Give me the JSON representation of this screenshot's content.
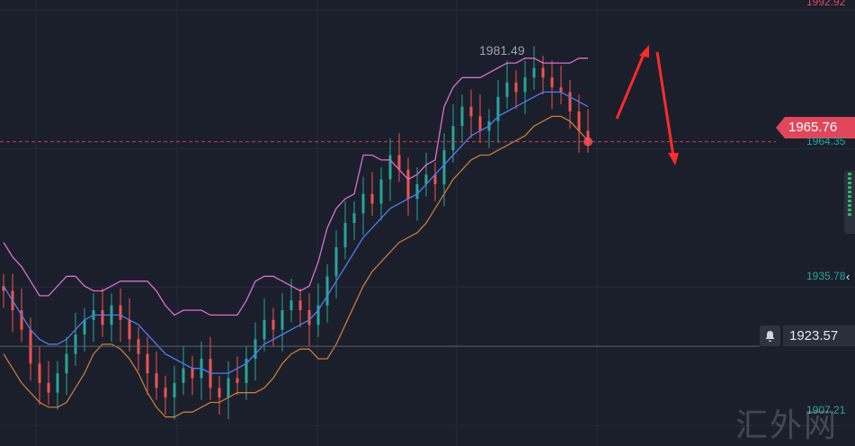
{
  "price_axis": {
    "top_label": "1992.92",
    "current_price": "1965.76",
    "bid_label": "1964.35",
    "mid_label": "1935.78",
    "alert_price": "1923.57",
    "bottom_label": "1907.21"
  },
  "annotations": {
    "high_label": "1981.49"
  },
  "watermark": "汇外网",
  "colors": {
    "background": "#1b1f2b",
    "up_candle": "#26a69a",
    "down_candle": "#ef5350",
    "upper_band": "#d86fd0",
    "middle_band": "#4d7df0",
    "lower_band": "#c77a3a",
    "price_tag": "#e0475a",
    "arrow": "#ff2a2a"
  },
  "chart_data": {
    "type": "line",
    "title": "",
    "xlabel": "",
    "ylabel": "",
    "ylim": [
      1903,
      1995
    ],
    "yticks": [
      1907.21,
      1935.78,
      1964.35,
      1992.92
    ],
    "x": [
      0,
      1,
      2,
      3,
      4,
      5,
      6,
      7,
      8,
      9,
      10,
      11,
      12,
      13,
      14,
      15,
      16,
      17,
      18,
      19,
      20,
      21,
      22,
      23,
      24,
      25,
      26,
      27,
      28,
      29,
      30,
      31,
      32,
      33,
      34,
      35,
      36,
      37,
      38,
      39,
      40,
      41,
      42,
      43,
      44,
      45,
      46,
      47,
      48,
      49,
      50,
      51,
      52,
      53,
      54,
      55,
      56,
      57,
      58,
      59,
      60,
      61,
      62,
      63,
      64,
      65
    ],
    "close": [
      1935,
      1931,
      1927,
      1920,
      1916,
      1914,
      1918,
      1922,
      1926,
      1929,
      1931,
      1928,
      1932,
      1929,
      1925,
      1922,
      1918,
      1915,
      1913,
      1916,
      1919,
      1917,
      1921,
      1915,
      1913,
      1917,
      1916,
      1921,
      1925,
      1929,
      1927,
      1931,
      1933,
      1931,
      1928,
      1932,
      1938,
      1944,
      1949,
      1951,
      1955,
      1953,
      1958,
      1963,
      1960,
      1954,
      1957,
      1959,
      1957,
      1964,
      1969,
      1973,
      1971,
      1968,
      1970,
      1975,
      1978,
      1976,
      1979,
      1981,
      1979,
      1977,
      1976,
      1972,
      1968,
      1966
    ],
    "series": [
      {
        "name": "",
        "role": "upper_band",
        "values": [
          1945,
          1942,
          1940,
          1937,
          1934,
          1934,
          1936,
          1938,
          1938,
          1936,
          1935,
          1935,
          1936,
          1937,
          1937,
          1937,
          1937,
          1935,
          1932,
          1930,
          1931,
          1931,
          1931,
          1930,
          1930,
          1930,
          1930,
          1933,
          1937,
          1938,
          1938,
          1937,
          1936,
          1935,
          1936,
          1941,
          1948,
          1952,
          1954,
          1955,
          1963,
          1963,
          1962,
          1962,
          1960,
          1958,
          1959,
          1961,
          1962,
          1973,
          1977,
          1979,
          1979,
          1979,
          1980,
          1981,
          1982,
          1982,
          1983,
          1983,
          1982,
          1982,
          1982,
          1982,
          1983,
          1983
        ]
      },
      {
        "name": "",
        "role": "middle_band",
        "values": [
          1936,
          1933,
          1930,
          1927,
          1925,
          1924,
          1924,
          1925,
          1927,
          1929,
          1930,
          1930,
          1930,
          1930,
          1929,
          1928,
          1926,
          1924,
          1922,
          1921,
          1920,
          1919,
          1919,
          1918,
          1918,
          1918,
          1919,
          1920,
          1922,
          1924,
          1925,
          1926,
          1927,
          1928,
          1929,
          1931,
          1934,
          1937,
          1940,
          1943,
          1946,
          1948,
          1950,
          1952,
          1953,
          1954,
          1955,
          1957,
          1959,
          1961,
          1963,
          1965,
          1967,
          1968,
          1969,
          1971,
          1972,
          1973,
          1974,
          1975,
          1976,
          1976,
          1976,
          1975,
          1974,
          1973
        ]
      },
      {
        "name": "",
        "role": "lower_band",
        "values": [
          1922,
          1919,
          1916,
          1914,
          1912,
          1911,
          1911,
          1912,
          1915,
          1918,
          1922,
          1924,
          1924,
          1923,
          1921,
          1918,
          1914,
          1911,
          1909,
          1909,
          1910,
          1910,
          1911,
          1912,
          1912,
          1913,
          1914,
          1914,
          1914,
          1915,
          1917,
          1920,
          1922,
          1923,
          1923,
          1921,
          1921,
          1924,
          1928,
          1932,
          1936,
          1939,
          1941,
          1943,
          1945,
          1946,
          1947,
          1949,
          1952,
          1955,
          1958,
          1960,
          1962,
          1963,
          1963,
          1964,
          1965,
          1966,
          1967,
          1969,
          1970,
          1971,
          1971,
          1970,
          1968,
          1966
        ]
      }
    ]
  }
}
